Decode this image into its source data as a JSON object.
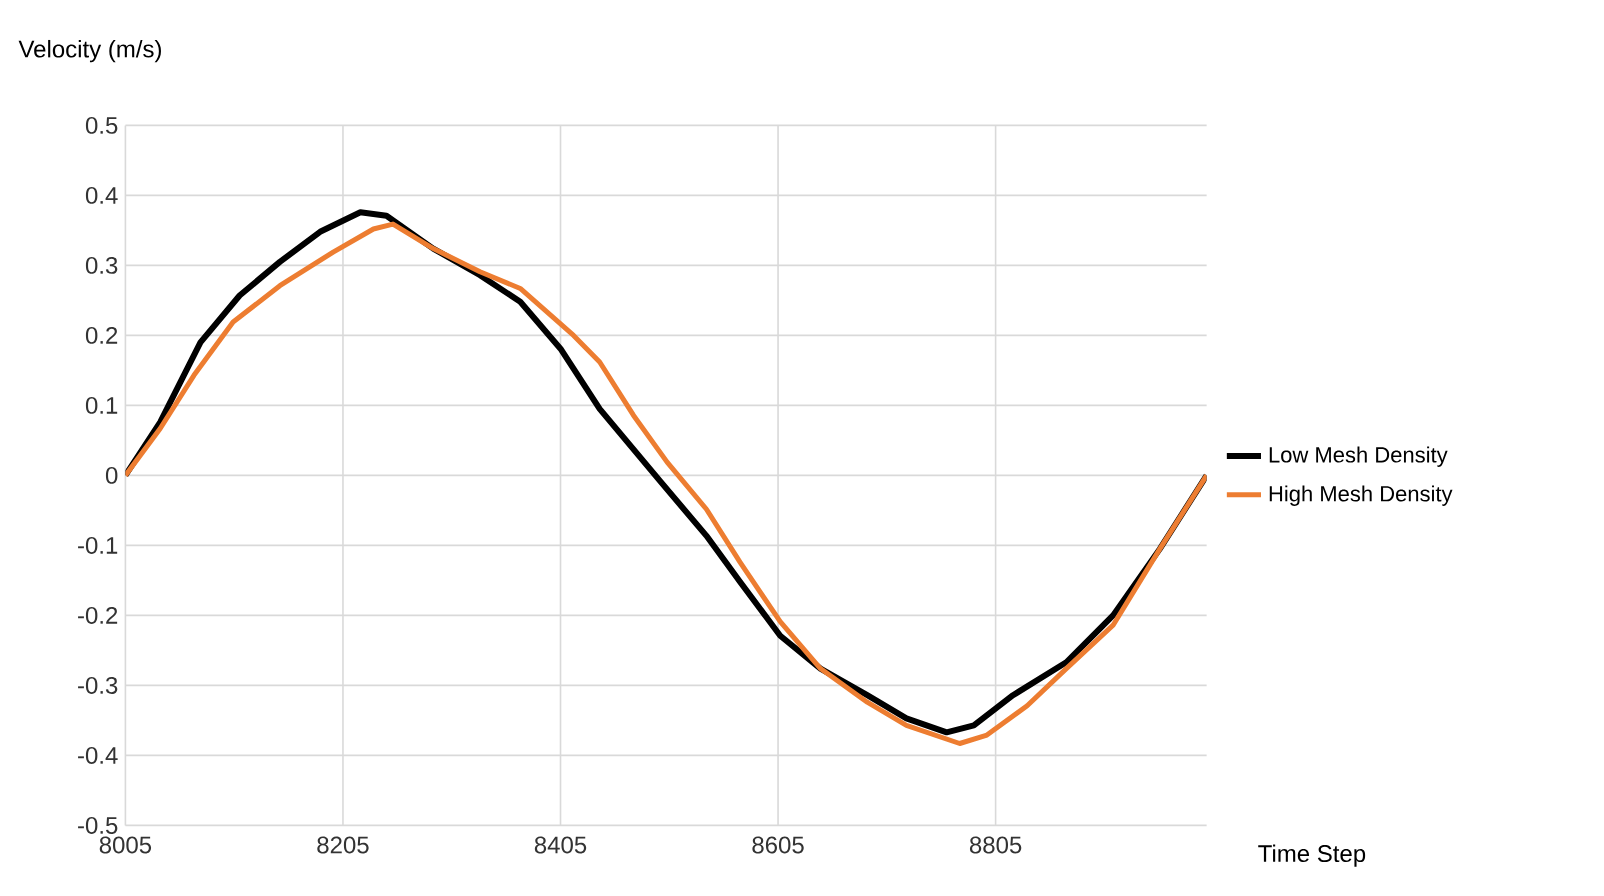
{
  "chart_data": {
    "type": "line",
    "xlabel": "Time Step",
    "ylabel": "Velocity (m/s)",
    "xlim": [
      8005,
      8999
    ],
    "xticks": [
      8005,
      8205,
      8405,
      8605,
      8805
    ],
    "ylim": [
      -0.5,
      0.5
    ],
    "yticks": [
      -0.5,
      -0.4,
      -0.3,
      -0.2,
      -0.1,
      0,
      0.1,
      0.2,
      0.3,
      0.4,
      0.5
    ],
    "grid": true,
    "legend": "right",
    "marker": "none",
    "line_style": "solid",
    "series": [
      {
        "name": "Low Mesh Density",
        "color": "#000000",
        "x": [
          8005,
          8037,
          8074,
          8110,
          8147,
          8184,
          8221,
          8245,
          8288,
          8331,
          8368,
          8405,
          8441,
          8497,
          8539,
          8570,
          8607,
          8644,
          8687,
          8723,
          8760,
          8785,
          8821,
          8870,
          8913,
          8956,
          8999
        ],
        "values": [
          0,
          0.076,
          0.19,
          0.257,
          0.305,
          0.348,
          0.376,
          0.371,
          0.324,
          0.286,
          0.248,
          0.181,
          0.095,
          -0.009,
          -0.086,
          -0.152,
          -0.229,
          -0.276,
          -0.314,
          -0.347,
          -0.367,
          -0.357,
          -0.314,
          -0.267,
          -0.2,
          -0.105,
          0
        ]
      },
      {
        "name": "High Mesh Density",
        "color": "#ed7d31",
        "x": [
          8005,
          8037,
          8068,
          8104,
          8147,
          8196,
          8233,
          8251,
          8288,
          8331,
          8368,
          8417,
          8441,
          8472,
          8503,
          8539,
          8570,
          8607,
          8644,
          8687,
          8723,
          8772,
          8797,
          8834,
          8870,
          8913,
          8956,
          8999
        ],
        "values": [
          0,
          0.067,
          0.143,
          0.219,
          0.271,
          0.319,
          0.352,
          0.359,
          0.324,
          0.291,
          0.267,
          0.2,
          0.162,
          0.086,
          0.019,
          -0.048,
          -0.124,
          -0.209,
          -0.276,
          -0.324,
          -0.357,
          -0.383,
          -0.371,
          -0.329,
          -0.276,
          -0.214,
          -0.105,
          0
        ]
      }
    ]
  }
}
